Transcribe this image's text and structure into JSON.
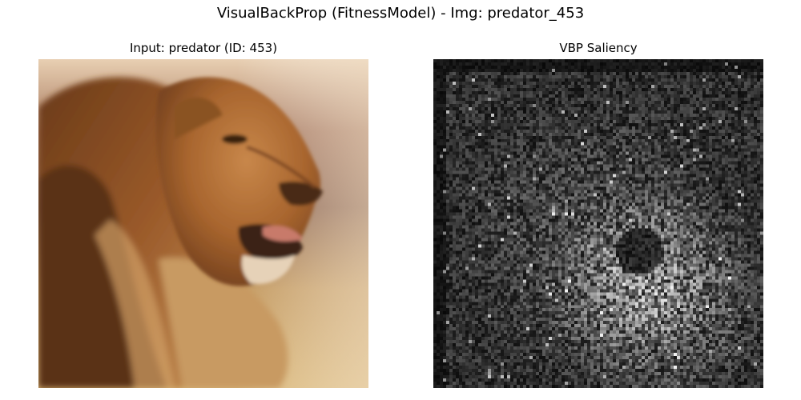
{
  "figure": {
    "suptitle": "VisualBackProp (FitnessModel) - Img: predator_453"
  },
  "panels": [
    {
      "title": "Input: predator (ID: 453)",
      "content": "photo of a lion's head in profile"
    },
    {
      "title": "VBP Saliency",
      "content": "grayscale saliency heatmap"
    }
  ],
  "colors": {
    "background": "#ffffff",
    "lion_mane_dark": "#5a3418",
    "lion_fur": "#b07038",
    "lion_light": "#d8a86a",
    "sky_light": "#f0dcc0",
    "saliency_low": "#050505",
    "saliency_high": "#e8e8e8"
  }
}
